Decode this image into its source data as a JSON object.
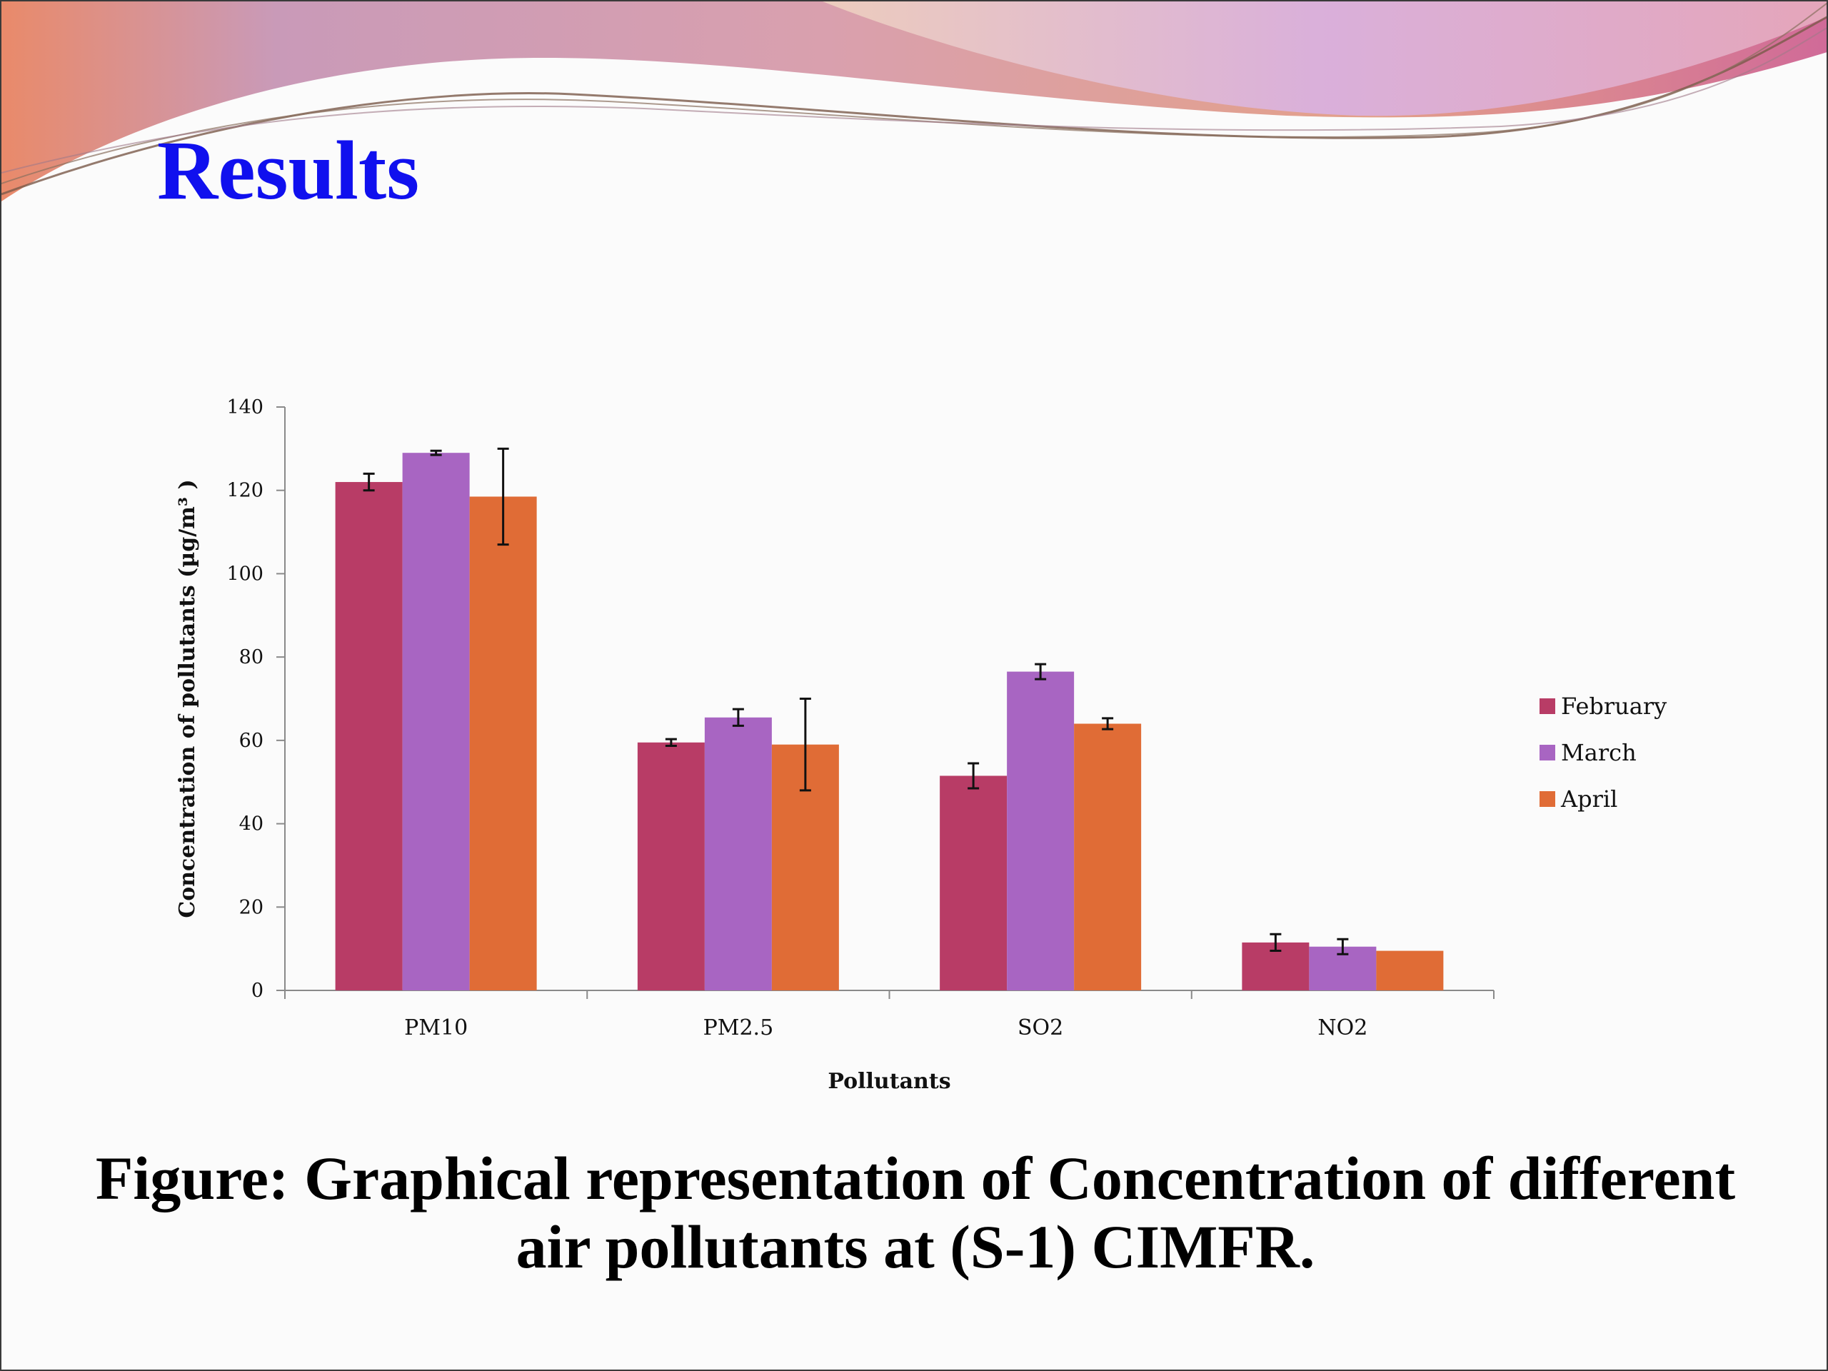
{
  "slide": {
    "title": "Results",
    "caption_lines": [
      "Figure: Graphical representation of Concentration of different",
      "air pollutants at (S-1) CIMFR."
    ]
  },
  "colors": {
    "title": "#1010ee",
    "February": "#b83c66",
    "March": "#a865c2",
    "April": "#e06c36"
  },
  "chart_data": {
    "type": "bar",
    "title": "",
    "xlabel": "Pollutants",
    "ylabel": "Concentration of pollutants  (µg/m³ )",
    "categories": [
      "PM10",
      "PM2.5",
      "SO2",
      "NO2"
    ],
    "ylim": [
      0,
      140
    ],
    "yticks": [
      0,
      20,
      40,
      60,
      80,
      100,
      120,
      140
    ],
    "grid": false,
    "legend_position": "right",
    "series": [
      {
        "name": "February",
        "color": "#b83c66",
        "values": [
          122,
          59.5,
          51.5,
          11.5
        ],
        "errors": [
          2,
          0.8,
          3,
          2
        ]
      },
      {
        "name": "March",
        "color": "#a865c2",
        "values": [
          129,
          65.5,
          76.5,
          10.5
        ],
        "errors": [
          0.5,
          2,
          1.8,
          1.8
        ]
      },
      {
        "name": "April",
        "color": "#e06c36",
        "values": [
          118.5,
          59,
          64,
          9.5
        ],
        "errors": [
          11.5,
          11,
          1.3,
          0
        ]
      }
    ]
  }
}
